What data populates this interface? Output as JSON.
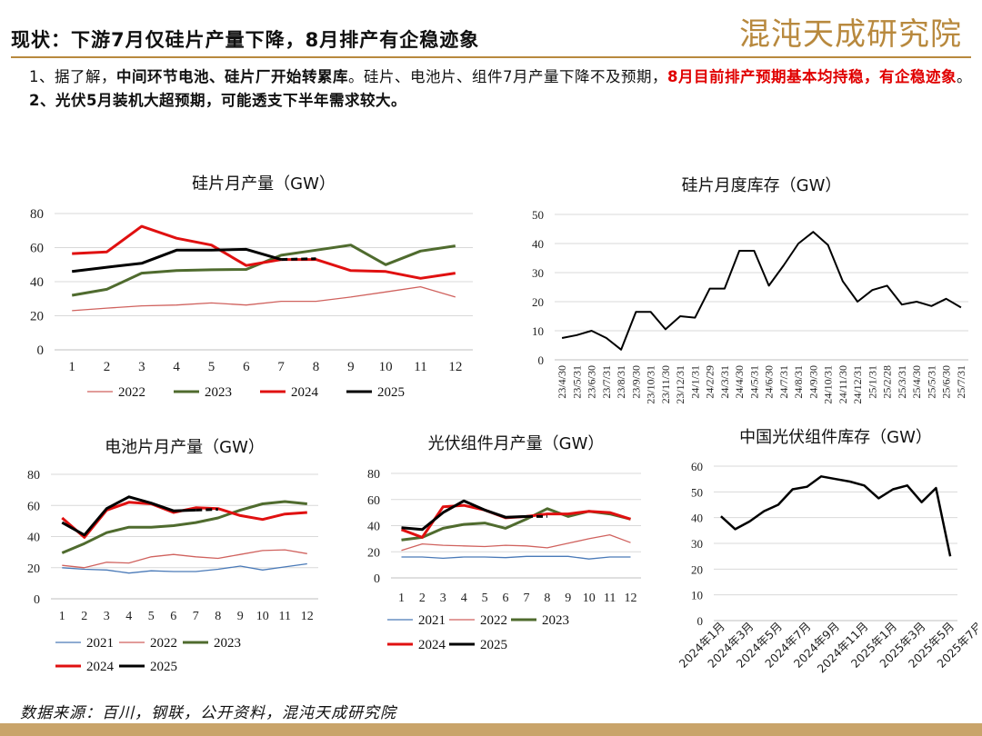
{
  "header": {
    "title": "现状：下游7月仅硅片产量下降，8月排产有企稳迹象",
    "logo_text": "混沌天成研究院"
  },
  "bullets": {
    "b1_prefix": "1、据了解，",
    "b1_bold": "中间环节电池、硅片厂开始转累库",
    "b1_mid": "。硅片、电池片、组件7月产量下降不及预期，",
    "b1_red": "8月目前排产预期基本均持稳，有企稳迹象",
    "b1_end": "。",
    "b2": "2、光伏5月装机大超预期，可能透支下半年需求较大。"
  },
  "footer": {
    "source": "数据来源：百川，钢联，公开资料，混沌天成研究院"
  },
  "colors": {
    "c2021": "#4a7ab8",
    "c2022": "#d0625e",
    "c2023": "#4f6b2e",
    "c2024": "#e01010",
    "c2025": "#000000"
  },
  "chart_data": [
    {
      "id": "wafer",
      "type": "line",
      "title": "硅片月产量（GW）",
      "xlabel": "",
      "ylabel": "",
      "x": [
        1,
        2,
        3,
        4,
        5,
        6,
        7,
        8,
        9,
        10,
        11,
        12
      ],
      "ylim": [
        0,
        80
      ],
      "yticks": [
        0,
        20,
        40,
        60,
        80
      ],
      "series": [
        {
          "name": "2022",
          "color": "#d0625e",
          "width": 1.3,
          "values": [
            23,
            24.5,
            25.8,
            26.3,
            27.5,
            26.3,
            28.5,
            28.5,
            31,
            34,
            37,
            31
          ]
        },
        {
          "name": "2023",
          "color": "#4f6b2e",
          "width": 3,
          "values": [
            32,
            35.5,
            45,
            46.5,
            47,
            47.2,
            55.5,
            58.5,
            61.5,
            50,
            58,
            61
          ]
        },
        {
          "name": "2024",
          "color": "#e01010",
          "width": 3,
          "values": [
            56.5,
            57.5,
            72.5,
            65.5,
            61.5,
            49.5,
            53,
            53,
            46.5,
            46,
            42,
            45
          ]
        },
        {
          "name": "2025",
          "color": "#000000",
          "width": 3,
          "values": [
            46,
            48.5,
            50.8,
            58.5,
            58.5,
            59,
            53,
            null,
            null,
            null,
            null,
            null
          ],
          "dashed_x": [
            7,
            8
          ],
          "dashed_values": [
            53,
            53.5
          ]
        }
      ],
      "legend": "bottom"
    },
    {
      "id": "wafer_inventory",
      "type": "line",
      "title": "硅片月度库存（GW）",
      "xlabel": "",
      "ylabel": "",
      "categories": [
        "23/4/30",
        "23/5/31",
        "23/6/30",
        "23/7/31",
        "23/8/31",
        "23/9/30",
        "23/10/31",
        "23/11/30",
        "23/12/31",
        "24/1/31",
        "24/2/29",
        "24/3/31",
        "24/4/30",
        "24/5/31",
        "24/6/30",
        "24/7/31",
        "24/8/31",
        "24/9/30",
        "24/10/31",
        "24/11/30",
        "24/12/31",
        "25/1/31",
        "25/2/28",
        "25/3/31",
        "25/4/30",
        "25/5/31",
        "25/6/30",
        "25/7/31"
      ],
      "ylim": [
        0,
        50
      ],
      "yticks": [
        0,
        10,
        20,
        30,
        40,
        50
      ],
      "series": [
        {
          "color": "#000000",
          "width": 2,
          "values": [
            7.5,
            8.5,
            10,
            7.5,
            3.5,
            16.5,
            16.5,
            10.5,
            15,
            14.5,
            24.5,
            24.5,
            37.5,
            37.5,
            25.5,
            32.5,
            40,
            44,
            39.5,
            27,
            20,
            24,
            25.5,
            19,
            20,
            18.5,
            21,
            18
          ]
        }
      ]
    },
    {
      "id": "cell",
      "type": "line",
      "title": "电池片月产量（GW）",
      "xlabel": "",
      "ylabel": "",
      "x": [
        1,
        2,
        3,
        4,
        5,
        6,
        7,
        8,
        9,
        10,
        11,
        12
      ],
      "ylim": [
        0,
        80
      ],
      "yticks": [
        0,
        20,
        40,
        60,
        80
      ],
      "series": [
        {
          "name": "2021",
          "color": "#4a7ab8",
          "width": 1.3,
          "values": [
            20,
            19,
            18.5,
            16.5,
            18,
            17.5,
            17.5,
            19,
            21,
            18.5,
            20.5,
            22.5
          ]
        },
        {
          "name": "2022",
          "color": "#d0625e",
          "width": 1.3,
          "values": [
            21.5,
            20,
            23.5,
            23,
            27,
            28.5,
            27,
            26,
            28.5,
            31,
            31.5,
            29
          ]
        },
        {
          "name": "2023",
          "color": "#4f6b2e",
          "width": 3,
          "values": [
            29.5,
            35.5,
            42.5,
            46,
            46,
            47,
            49,
            52,
            57,
            61,
            62.5,
            61
          ]
        },
        {
          "name": "2024",
          "color": "#e01010",
          "width": 3,
          "values": [
            52,
            39.5,
            57,
            62,
            61,
            55.5,
            58.5,
            58,
            53.5,
            51,
            54.5,
            55.5
          ]
        },
        {
          "name": "2025",
          "color": "#000000",
          "width": 3,
          "values": [
            49,
            41,
            58,
            65.5,
            61.5,
            56.5,
            57,
            null,
            null,
            null,
            null,
            null
          ],
          "dashed_x": [
            7,
            8
          ],
          "dashed_values": [
            57,
            57.5
          ]
        }
      ],
      "legend": "bottom"
    },
    {
      "id": "module",
      "type": "line",
      "title": "光伏组件月产量（GW）",
      "xlabel": "",
      "ylabel": "",
      "x": [
        1,
        2,
        3,
        4,
        5,
        6,
        7,
        8,
        9,
        10,
        11,
        12
      ],
      "ylim": [
        0,
        80
      ],
      "yticks": [
        0,
        20,
        40,
        60,
        80
      ],
      "series": [
        {
          "name": "2021",
          "color": "#4a7ab8",
          "width": 1.3,
          "values": [
            16,
            16,
            15,
            16,
            16,
            15.5,
            16.5,
            16.5,
            16.5,
            14.5,
            16,
            16
          ]
        },
        {
          "name": "2022",
          "color": "#d0625e",
          "width": 1.3,
          "values": [
            21,
            26,
            25,
            24.5,
            24,
            25,
            24.5,
            23,
            26.5,
            30,
            33,
            27
          ]
        },
        {
          "name": "2023",
          "color": "#4f6b2e",
          "width": 3,
          "values": [
            29,
            31,
            38,
            41,
            42,
            38,
            45,
            53,
            47,
            51,
            49,
            45
          ]
        },
        {
          "name": "2024",
          "color": "#e01010",
          "width": 3,
          "values": [
            37,
            31,
            54.5,
            55.5,
            52,
            46,
            47,
            49,
            49,
            51,
            50,
            45
          ]
        },
        {
          "name": "2025",
          "color": "#000000",
          "width": 3,
          "values": [
            38.5,
            37,
            50,
            59,
            52,
            46.5,
            47,
            null,
            null,
            null,
            null,
            null
          ],
          "dashed_x": [
            7,
            8
          ],
          "dashed_values": [
            47,
            47
          ]
        }
      ],
      "legend": "bottom"
    },
    {
      "id": "module_inventory",
      "type": "line",
      "title": "中国光伏组件库存（GW）",
      "xlabel": "",
      "ylabel": "",
      "tick_labels": [
        "2024年1月",
        "2024年3月",
        "2024年5月",
        "2024年7月",
        "2024年9月",
        "2024年11月",
        "2025年1月",
        "2025年3月",
        "2025年5月",
        "2025年7月"
      ],
      "ylim": [
        0,
        60
      ],
      "yticks": [
        0,
        10,
        20,
        30,
        40,
        50,
        60
      ],
      "series": [
        {
          "color": "#000000",
          "width": 2.5,
          "values": [
            40.5,
            35.5,
            38.5,
            42.5,
            45,
            51,
            52,
            56,
            55,
            54,
            52.5,
            47.5,
            51,
            52.5,
            46,
            51.5,
            25
          ]
        }
      ]
    }
  ]
}
